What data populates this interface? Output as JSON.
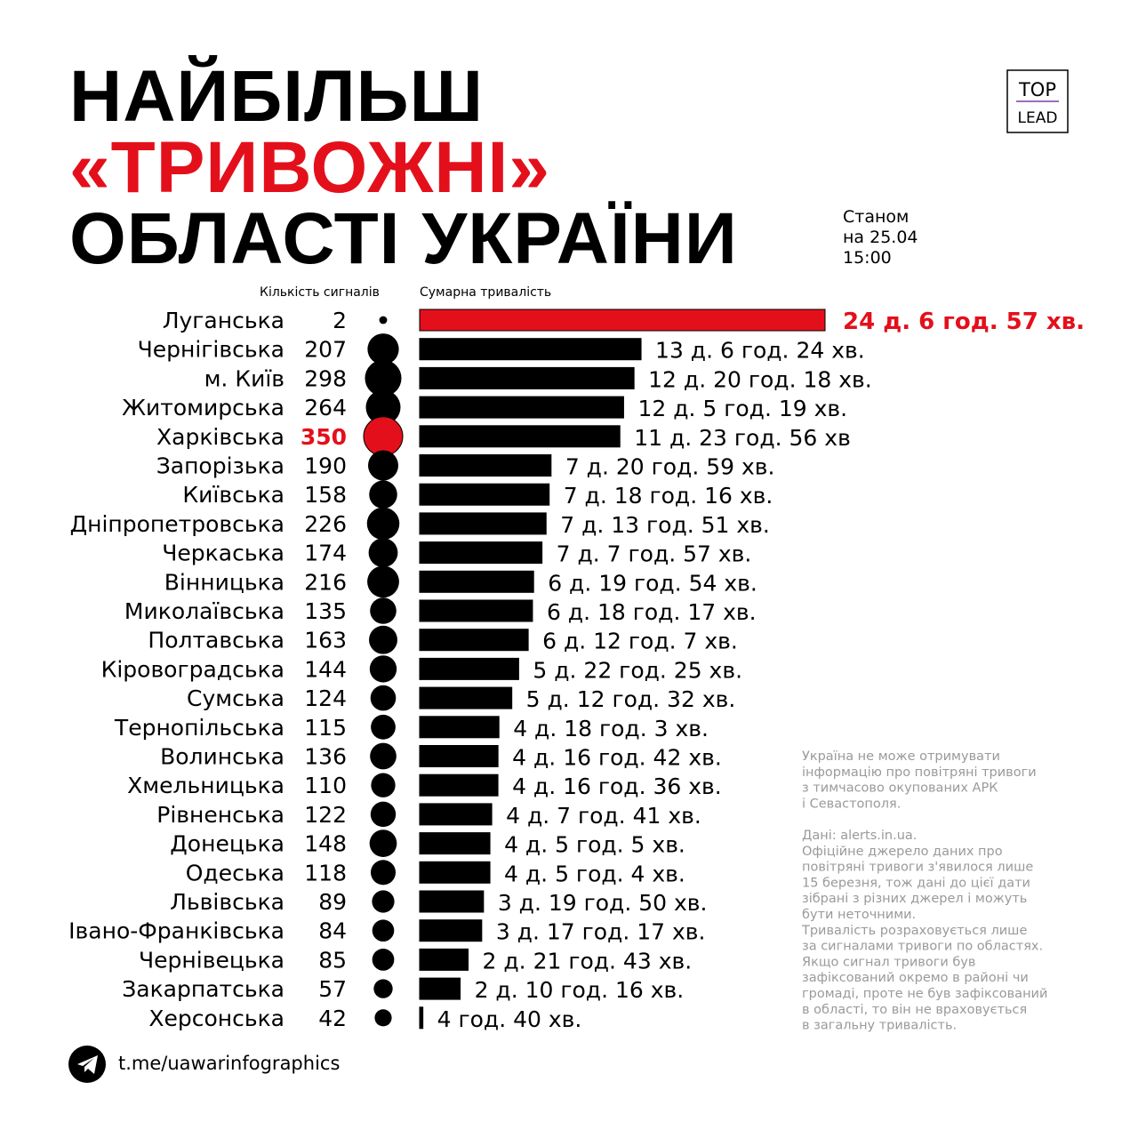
{
  "chart_data": {
    "type": "bar",
    "title": [
      "НАЙБІЛЬШ",
      "«ТРИВОЖНІ»",
      "ОБЛАСТІ УКРАЇНИ"
    ],
    "title_colors": [
      "#000000",
      "#e3101b",
      "#000000"
    ],
    "subtitle": [
      "Станом",
      "на 25.04",
      "15:00"
    ],
    "logo": [
      "TOP",
      "LEAD"
    ],
    "signals_label": "Кількість сигналів",
    "values_label": "Сумарна тривалість",
    "categories": [
      "Луганська",
      "Чернігівська",
      "м. Київ",
      "Житомирська",
      "Харківська",
      "Запорізька",
      "Київська",
      "Дніпропетровська",
      "Черкаська",
      "Вінницька",
      "Миколаївська",
      "Полтавська",
      "Кіровоградська",
      "Сумська",
      "Тернопільська",
      "Волинська",
      "Хмельницька",
      "Рівненська",
      "Донецька",
      "Одеська",
      "Львівська",
      "Івано-Франківська",
      "Чернівецька",
      "Закарпатська",
      "Херсонська"
    ],
    "signals": [
      2,
      207,
      298,
      264,
      350,
      190,
      158,
      226,
      174,
      216,
      135,
      163,
      144,
      124,
      115,
      136,
      110,
      122,
      148,
      118,
      89,
      84,
      85,
      57,
      42
    ],
    "signal_colors": [
      "#000000",
      "#000000",
      "#000000",
      "#000000",
      "#e3101b",
      "#000000",
      "#000000",
      "#000000",
      "#000000",
      "#000000",
      "#000000",
      "#000000",
      "#000000",
      "#000000",
      "#000000",
      "#000000",
      "#000000",
      "#000000",
      "#000000",
      "#000000",
      "#000000",
      "#000000",
      "#000000",
      "#000000",
      "#000000"
    ],
    "values": [
      34977,
      19104,
      18498,
      17599,
      17276,
      11339,
      11176,
      10911,
      10557,
      9834,
      9737,
      9367,
      8545,
      7952,
      6843,
      6762,
      6756,
      6221,
      6065,
      6064,
      5510,
      5357,
      4183,
      3496,
      280
    ],
    "value_labels": [
      "24 д. 6 год. 57 хв.",
      "13 д. 6 год. 24 хв.",
      "12 д. 20 год. 18 хв.",
      "12 д. 5 год. 19 хв.",
      "11 д. 23 год. 56 хв",
      "7 д. 20 год. 59 хв.",
      "7 д. 18 год. 16 хв.",
      "7 д. 13 год. 51 хв.",
      "7 д. 7 год. 57 хв.",
      "6 д. 19 год. 54 хв.",
      "6 д. 18 год. 17 хв.",
      "6 д. 12 год. 7 хв.",
      "5 д. 22 год. 25 хв.",
      "5 д. 12 год. 32 хв.",
      "4 д. 18 год. 3 хв.",
      "4 д. 16 год. 42 хв.",
      "4 д. 16 год. 36 хв.",
      "4 д. 7 год. 41 хв.",
      "4 д. 5 год. 5 хв.",
      "4 д. 5 год. 4 хв.",
      "3 д. 19 год. 50 хв.",
      "3 д. 17 год. 17 хв.",
      "2 д. 21 год. 43 хв.",
      "2 д. 10 год. 16 хв.",
      "4 год. 40 хв."
    ],
    "bar_colors": [
      "#e3101b",
      "#000000",
      "#000000",
      "#000000",
      "#000000",
      "#000000",
      "#000000",
      "#000000",
      "#000000",
      "#000000",
      "#000000",
      "#000000",
      "#000000",
      "#000000",
      "#000000",
      "#000000",
      "#000000",
      "#000000",
      "#000000",
      "#000000",
      "#000000",
      "#000000",
      "#000000",
      "#000000",
      "#000000"
    ],
    "note": [
      "Україна не може отримувати",
      "інформацію про повітряні тривоги",
      "з тимчасово окупованих АРК",
      "і Севастополя.",
      "",
      "Дані: alerts.in.ua.",
      "Офіційне джерело даних про",
      "повітряні тривоги з'явилося лише",
      "15 березня, тож дані до цієї дати",
      "зібрані з різних джерел і можуть",
      "бути неточними.",
      "Тривалість розраховується лише",
      "за сигналами тривоги по областях.",
      "Якщо сигнал тривоги був",
      "зафіксований окремо в районі чи",
      "громаді, проте не був зафіксований",
      "в області, то він не враховується",
      "в загальну тривалість."
    ],
    "footer": "t.me/uawarinfographics"
  }
}
